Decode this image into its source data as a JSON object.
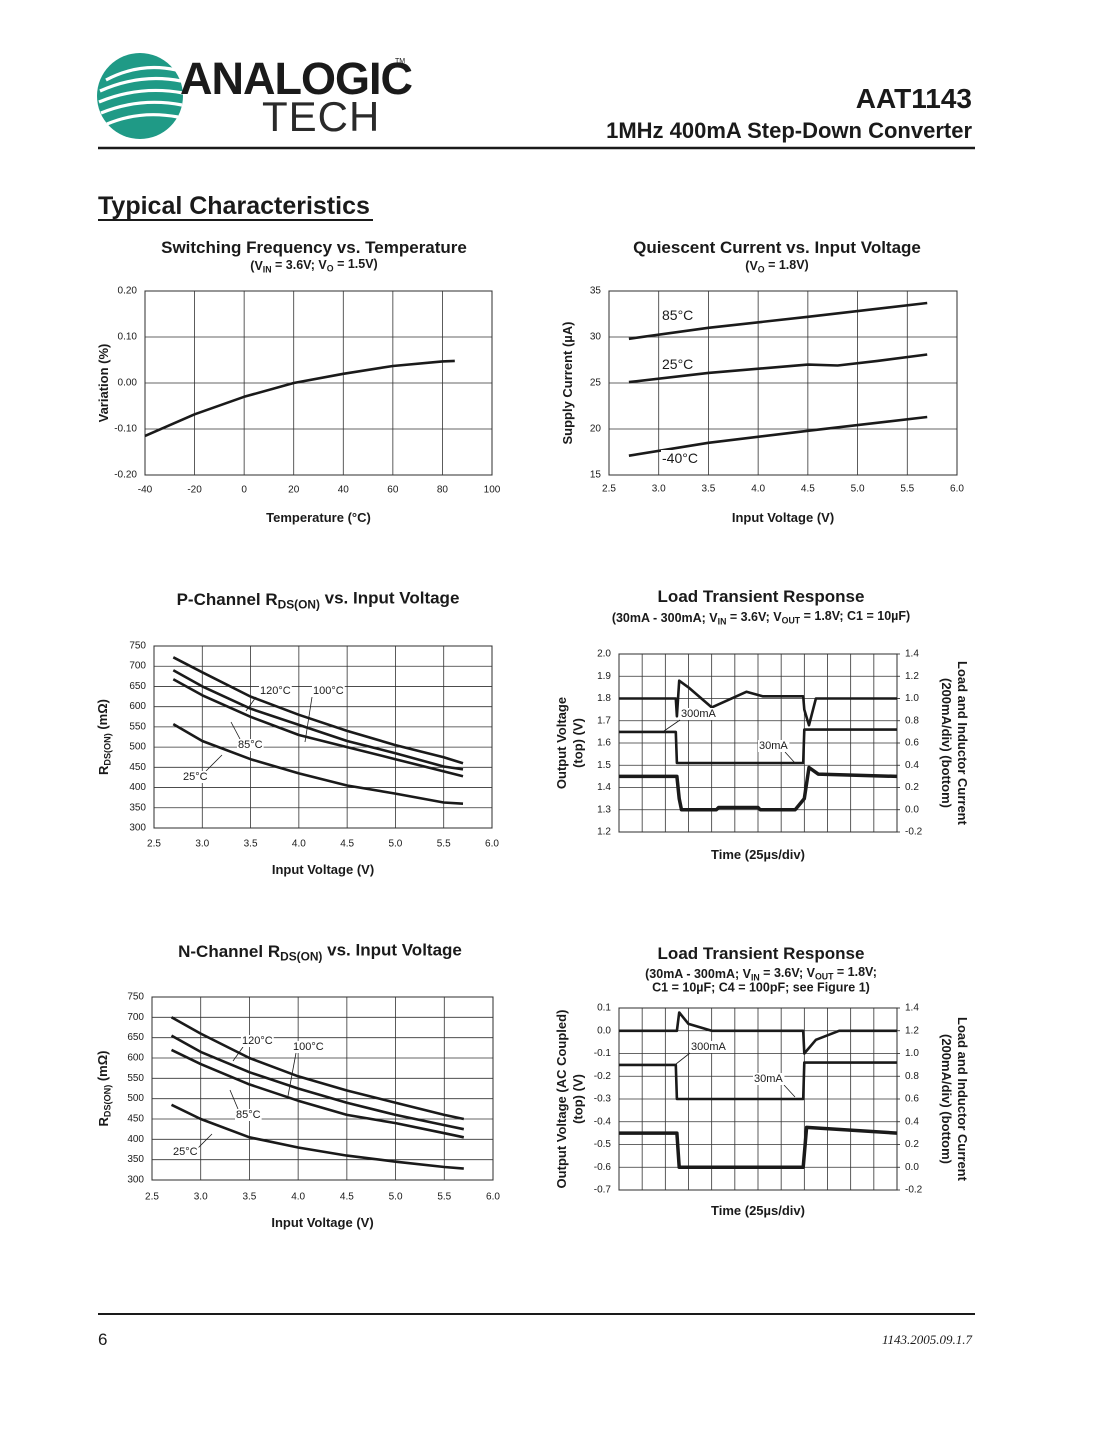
{
  "header": {
    "logo": {
      "word1": "ANALOGIC",
      "word2": "TECH",
      "mark": "TM"
    },
    "product": "AAT1143",
    "subtitle": "1MHz 400mA Step-Down Converter"
  },
  "section_title": "Typical Characteristics",
  "chart_data": [
    {
      "type": "line",
      "title": "Switching Frequency vs. Temperature",
      "subtitle": [
        "(V",
        {
          "sub": "IN"
        },
        " = 3.6V; V",
        {
          "sub": "O"
        },
        " = 1.5V)"
      ],
      "xlabel": "Temperature (°C)",
      "ylabel": "Variation (%)",
      "xlim": [
        -40,
        100
      ],
      "xticks": [
        -40,
        -20,
        0,
        20,
        40,
        60,
        80,
        100
      ],
      "ylim": [
        -0.2,
        0.2
      ],
      "yticks": [
        {
          "value": 0.2,
          "label": "0.20"
        },
        {
          "value": 0.1,
          "label": "0.10"
        },
        {
          "value": 0,
          "label": "0.00"
        },
        {
          "value": -0.1,
          "label": "-0.10"
        },
        {
          "value": -0.2,
          "label": "-0.20"
        }
      ],
      "grid": true,
      "series": [
        {
          "color": "#1a1a1a",
          "x": [
            -40,
            -20,
            0,
            20,
            40,
            60,
            80,
            85
          ],
          "values": [
            -0.115,
            -0.068,
            -0.03,
            0.0,
            0.02,
            0.037,
            0.047,
            0.048
          ]
        }
      ]
    },
    {
      "type": "line",
      "title": "Quiescent Current vs. Input Voltage",
      "subtitle": [
        "(V",
        {
          "sub": "O"
        },
        " = 1.8V)"
      ],
      "xlabel": "Input Voltage (V)",
      "ylabel": "Supply Current (µA)",
      "xlim": [
        2.5,
        6.0
      ],
      "xticks": [
        2.5,
        {
          "value": 3,
          "label": "3.0"
        },
        3.5,
        {
          "value": 4,
          "label": "4.0"
        },
        4.5,
        {
          "value": 5,
          "label": "5.0"
        },
        5.5,
        {
          "value": 6,
          "label": "6.0"
        }
      ],
      "ylim": [
        15,
        35
      ],
      "yticks": [
        15,
        20,
        25,
        30,
        35
      ],
      "grid": true,
      "series": [
        {
          "name": "85°C",
          "color": "#1a1a1a",
          "x": [
            2.7,
            3.5,
            4.5,
            5.7
          ],
          "values": [
            29.8,
            31.0,
            32.2,
            33.7
          ]
        },
        {
          "name": "25°C",
          "color": "#1a1a1a",
          "x": [
            2.7,
            3.5,
            4.5,
            4.8,
            5.2,
            5.7
          ],
          "values": [
            25.1,
            26.1,
            27.0,
            26.9,
            27.4,
            28.1
          ]
        },
        {
          "name": "-40°C",
          "color": "#1a1a1a",
          "x": [
            2.7,
            3.5,
            4.5,
            5.7
          ],
          "values": [
            17.1,
            18.5,
            19.8,
            21.3
          ]
        }
      ]
    },
    {
      "type": "line",
      "title": [
        "P-Channel R",
        {
          "sub": "DS(ON)"
        },
        " vs. Input Voltage"
      ],
      "xlabel": "Input Voltage (V)",
      "ylabel": [
        "R",
        {
          "sub": "DS(ON)"
        },
        " (mΩ)"
      ],
      "xlim": [
        2.5,
        6.0
      ],
      "xticks": [
        2.5,
        {
          "value": 3,
          "label": "3.0"
        },
        3.5,
        {
          "value": 4,
          "label": "4.0"
        },
        4.5,
        {
          "value": 5,
          "label": "5.0"
        },
        5.5,
        {
          "value": 6,
          "label": "6.0"
        }
      ],
      "ylim": [
        300,
        750
      ],
      "yticks": [
        300,
        350,
        400,
        450,
        500,
        550,
        600,
        650,
        700,
        750
      ],
      "grid": true,
      "series": [
        {
          "name": "120°C",
          "color": "#1a1a1a",
          "x": [
            2.7,
            3.0,
            3.5,
            4.0,
            4.5,
            5.0,
            5.5,
            5.7
          ],
          "values": [
            722,
            685,
            625,
            580,
            540,
            505,
            475,
            460
          ]
        },
        {
          "name": "100°C",
          "color": "#1a1a1a",
          "x": [
            2.7,
            3.0,
            3.5,
            4.0,
            4.5,
            5.0,
            5.5,
            5.7
          ],
          "values": [
            690,
            650,
            595,
            555,
            515,
            485,
            452,
            445
          ]
        },
        {
          "name": "85°C",
          "color": "#1a1a1a",
          "x": [
            2.7,
            3.0,
            3.5,
            4.0,
            4.5,
            5.0,
            5.5,
            5.7
          ],
          "values": [
            668,
            628,
            575,
            530,
            500,
            470,
            440,
            428
          ]
        },
        {
          "name": "25°C",
          "color": "#1a1a1a",
          "x": [
            2.7,
            3.0,
            3.5,
            4.0,
            4.5,
            5.0,
            5.5,
            5.7
          ],
          "values": [
            557,
            515,
            470,
            435,
            405,
            385,
            363,
            360
          ]
        }
      ]
    },
    {
      "type": "scope",
      "title": "Load Transient Response",
      "subtitle": [
        "(30mA - 300mA; V",
        {
          "sub": "IN"
        },
        " = 3.6V; V",
        {
          "sub": "OUT"
        },
        " = 1.8V; C1 = 10µF)"
      ],
      "xlabel": "Time (25µs/div)",
      "ylabel": [
        "Output Voltage",
        "(top) (V)"
      ],
      "y2label": [
        "Load and Inductor Current",
        "(200mA/div) (bottom)"
      ],
      "xlim": [
        0,
        12
      ],
      "ylim": [
        1.2,
        2.0
      ],
      "yticks": [
        1.2,
        1.3,
        1.4,
        1.5,
        1.6,
        1.7,
        1.8,
        1.9,
        {
          "value": 2,
          "label": "2.0"
        }
      ],
      "y2lim": [
        -0.2,
        1.4
      ],
      "y2ticks": [
        -0.2,
        {
          "value": 0,
          "label": "0.0"
        },
        0.2,
        0.4,
        0.6,
        0.8,
        {
          "value": 1,
          "label": "1.0"
        },
        1.2,
        1.4
      ],
      "grid": true,
      "annotations": [
        "300mA",
        "30mA"
      ],
      "series": [
        {
          "color": "#1a1a1a",
          "x": [
            0,
            2.45,
            2.5,
            2.6,
            3.0,
            4.0,
            5.5,
            6.2,
            7.95,
            8.0,
            8.2,
            8.5,
            12
          ],
          "values": [
            1.8,
            1.8,
            1.72,
            1.88,
            1.85,
            1.76,
            1.83,
            1.81,
            1.81,
            1.75,
            1.68,
            1.8,
            1.8
          ]
        },
        {
          "color": "#1a1a1a",
          "axis": "y2",
          "x": [
            0,
            2.45,
            2.5,
            7.95,
            8.0,
            12
          ],
          "values": [
            0.7,
            0.7,
            0.42,
            0.42,
            0.72,
            0.72
          ]
        },
        {
          "color": "#1a1a1a",
          "axis": "y2",
          "x": [
            0,
            2.5,
            2.6,
            2.7,
            4.2,
            4.3,
            6.0,
            6.1,
            7.6,
            8.0,
            8.2,
            8.6,
            12
          ],
          "values": [
            0.3,
            0.3,
            0.1,
            0.0,
            0.0,
            0.02,
            0.02,
            0.0,
            0.0,
            0.1,
            0.38,
            0.32,
            0.3
          ]
        }
      ]
    },
    {
      "type": "line",
      "title": [
        "N-Channel R",
        {
          "sub": "DS(ON)"
        },
        " vs. Input Voltage"
      ],
      "xlabel": "Input Voltage (V)",
      "ylabel": [
        "R",
        {
          "sub": "DS(ON)"
        },
        " (mΩ)"
      ],
      "xlim": [
        2.5,
        6.0
      ],
      "xticks": [
        2.5,
        {
          "value": 3,
          "label": "3.0"
        },
        3.5,
        {
          "value": 4,
          "label": "4.0"
        },
        4.5,
        {
          "value": 5,
          "label": "5.0"
        },
        5.5,
        {
          "value": 6,
          "label": "6.0"
        }
      ],
      "ylim": [
        300,
        750
      ],
      "yticks": [
        300,
        350,
        400,
        450,
        500,
        550,
        600,
        650,
        700,
        750
      ],
      "grid": true,
      "series": [
        {
          "name": "120°C",
          "color": "#1a1a1a",
          "x": [
            2.7,
            3.0,
            3.5,
            4.0,
            4.5,
            5.0,
            5.5,
            5.7
          ],
          "values": [
            700,
            660,
            600,
            555,
            520,
            490,
            460,
            450
          ]
        },
        {
          "name": "100°C",
          "color": "#1a1a1a",
          "x": [
            2.7,
            3.0,
            3.5,
            4.0,
            4.5,
            5.0,
            5.5,
            5.7
          ],
          "values": [
            655,
            615,
            565,
            525,
            490,
            460,
            435,
            425
          ]
        },
        {
          "name": "85°C",
          "color": "#1a1a1a",
          "x": [
            2.7,
            3.0,
            3.5,
            4.0,
            4.5,
            5.0,
            5.5,
            5.7
          ],
          "values": [
            620,
            585,
            535,
            495,
            460,
            440,
            415,
            405
          ]
        },
        {
          "name": "25°C",
          "color": "#1a1a1a",
          "x": [
            2.7,
            3.0,
            3.5,
            4.0,
            4.5,
            5.0,
            5.5,
            5.7
          ],
          "values": [
            485,
            450,
            405,
            380,
            360,
            345,
            332,
            328
          ]
        }
      ]
    },
    {
      "type": "scope",
      "title": "Load Transient Response",
      "subtitle": [
        [
          "(30mA - 300mA; V",
          {
            "sub": "IN"
          },
          " = 3.6V; V",
          {
            "sub": "OUT"
          },
          " = 1.8V;"
        ],
        [
          "C1 = 10µF; C4 = 100pF; see Figure 1)"
        ]
      ],
      "xlabel": "Time (25µs/div)",
      "ylabel": [
        "Output Voltage (AC Coupled)",
        "(top) (V)"
      ],
      "y2label": [
        "Load and Inductor Current",
        "(200mA/div) (bottom)"
      ],
      "xlim": [
        0,
        12
      ],
      "ylim": [
        -0.7,
        0.1
      ],
      "yticks": [
        -0.7,
        -0.6,
        -0.5,
        -0.4,
        -0.3,
        -0.2,
        -0.1,
        {
          "value": 0,
          "label": "0.0"
        },
        0.1
      ],
      "y2lim": [
        -0.2,
        1.4
      ],
      "y2ticks": [
        -0.2,
        {
          "value": 0,
          "label": "0.0"
        },
        0.2,
        0.4,
        0.6,
        0.8,
        {
          "value": 1,
          "label": "1.0"
        },
        1.2,
        1.4
      ],
      "grid": true,
      "annotations": [
        "300mA",
        "30mA"
      ],
      "series": [
        {
          "color": "#1a1a1a",
          "x": [
            0,
            2.5,
            2.6,
            3.0,
            4.0,
            7.95,
            8.0,
            8.5,
            9.5,
            12
          ],
          "values": [
            0.0,
            0.0,
            0.08,
            0.03,
            0.0,
            0.0,
            -0.1,
            -0.04,
            0.0,
            0.0
          ]
        },
        {
          "color": "#1a1a1a",
          "axis": "y2",
          "x": [
            0,
            2.45,
            2.5,
            7.95,
            8.0,
            12
          ],
          "values": [
            0.9,
            0.9,
            0.6,
            0.6,
            0.92,
            0.92
          ]
        },
        {
          "color": "#1a1a1a",
          "axis": "y2",
          "x": [
            0,
            2.5,
            2.6,
            7.95,
            8.1,
            12
          ],
          "values": [
            0.3,
            0.3,
            0.0,
            0.0,
            0.35,
            0.3
          ]
        }
      ]
    }
  ],
  "footer": {
    "page": "6",
    "doc_number": "1143.2005.09.1.7"
  }
}
